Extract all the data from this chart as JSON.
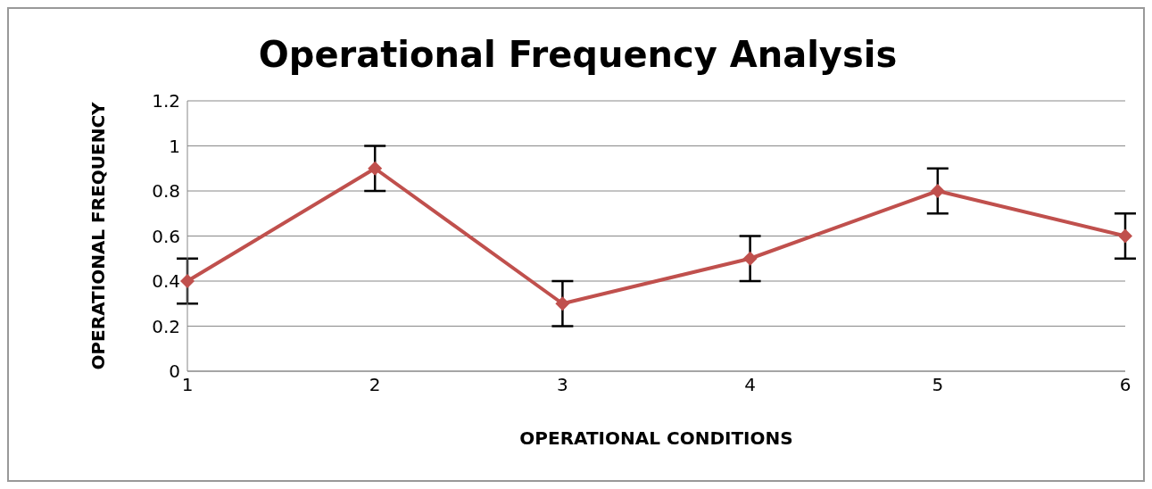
{
  "chart_data": {
    "type": "line",
    "title": "Operational Frequency Analysis",
    "xlabel": "OPERATIONAL CONDITIONS",
    "ylabel": "OPERATIONAL FREQUENCY",
    "categories": [
      "1",
      "2",
      "3",
      "4",
      "5",
      "6"
    ],
    "series": [
      {
        "color": "#c0504d",
        "values": [
          0.4,
          0.9,
          0.3,
          0.5,
          0.8,
          0.6
        ],
        "errors": [
          0.1,
          0.1,
          0.1,
          0.1,
          0.1,
          0.1
        ]
      }
    ],
    "ylim": [
      0,
      1.2
    ],
    "yticks": [
      0,
      0.2,
      0.4,
      0.6,
      0.8,
      1,
      1.2
    ],
    "grid": "y",
    "legend": false,
    "marker": "diamond",
    "line_style": "solid"
  }
}
